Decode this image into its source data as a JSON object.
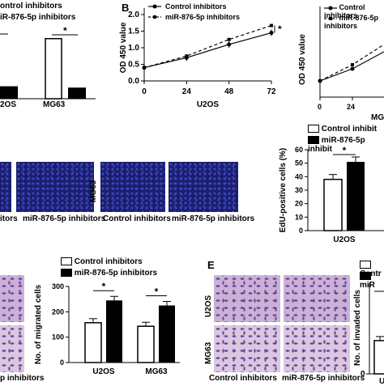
{
  "legend": {
    "control": "Control inhibitors",
    "mir": "miR-876-5p inhibitors"
  },
  "panel_b": {
    "letter": "B"
  },
  "panel_e": {
    "letter": "E"
  },
  "partial_labels": {
    "a_legend_1": "ontrol inhibitors",
    "a_legend_2": "iR-876-5p inhibitors",
    "a_x1": "2OS",
    "a_x2": "MG63",
    "b2_legend_1": "Control inhibitors",
    "b2_legend_2": "miR-876-5p inhibitors",
    "b2_ylabel": "OD 450 value",
    "b2_xtick_0": "0",
    "b2_xtick_24": "24",
    "b2_xlabel": "MG",
    "c_ctrl_crop": "itors",
    "c_mir_label": "miR-876-5p inhibitors",
    "c_mg63": "MG63",
    "c_ctrl_label2": "Control inhibitors",
    "c_mir_label2": "miR-876-5p inhibitors",
    "edu_legend_1": "Control inhibit",
    "edu_legend_2": "miR-876-5p inhibit",
    "d_left_crop": "p inhibitors",
    "e_u2os": "U2OS",
    "e_mg63": "MG63",
    "e_ctrl": "Control inhibitors",
    "e_mir": "miR-876-5p inhibitors",
    "e_legend_1": "Contr",
    "e_legend_2": "miR",
    "e_ylabel": "No. of invaded cells",
    "e_ytick": "0",
    "e_xlabel": "U"
  },
  "chart_data": [
    {
      "type": "bar",
      "id": "A",
      "categories": [
        "U2OS",
        "MG63"
      ],
      "series": [
        {
          "name": "Control inhibitors",
          "values": [
            null,
            1.35
          ]
        },
        {
          "name": "miR-876-5p inhibitors",
          "values": [
            0.28,
            0.25
          ]
        }
      ],
      "annotations": [
        "*"
      ]
    },
    {
      "type": "line",
      "id": "B-U2OS",
      "xlabel": "U2OS",
      "ylabel": "OD 450 value",
      "x": [
        0,
        24,
        48,
        72
      ],
      "ylim": [
        0.0,
        2.0
      ],
      "yticks": [
        "0.0",
        "0.5",
        "1.0",
        "1.5",
        "2.0"
      ],
      "xticks": [
        "0",
        "24",
        "48",
        "72"
      ],
      "series": [
        {
          "name": "Control inhibitors",
          "values": [
            0.4,
            0.7,
            1.1,
            1.45
          ]
        },
        {
          "name": "miR-876-5p inhibitors",
          "values": [
            0.4,
            0.75,
            1.25,
            1.67
          ]
        }
      ],
      "annotations": [
        "*"
      ]
    },
    {
      "type": "bar",
      "id": "C-EdU",
      "ylabel": "EdU-positive cells (%)",
      "categories": [
        "U2OS"
      ],
      "ylim": [
        0,
        60
      ],
      "yticks": [
        "0",
        "10",
        "20",
        "30",
        "40",
        "50",
        "60"
      ],
      "series": [
        {
          "name": "Control inhibitors",
          "values": [
            38
          ]
        },
        {
          "name": "miR-876-5p inhibitors",
          "values": [
            51
          ]
        }
      ],
      "annotations": [
        "*"
      ]
    },
    {
      "type": "bar",
      "id": "D-migration",
      "ylabel": "No. of migrated cells",
      "categories": [
        "U2OS",
        "MG63"
      ],
      "ylim": [
        0,
        300
      ],
      "yticks": [
        "0",
        "100",
        "200",
        "300"
      ],
      "series": [
        {
          "name": "Control inhibitors",
          "values": [
            157,
            143
          ]
        },
        {
          "name": "miR-876-5p inhibitors",
          "values": [
            245,
            225
          ]
        }
      ],
      "annotations": [
        "*",
        "*"
      ]
    },
    {
      "type": "bar",
      "id": "E-invasion",
      "categories": [
        "U2OS"
      ],
      "series": [
        {
          "name": "Control inhibitors",
          "values": [
            137
          ]
        }
      ]
    }
  ]
}
